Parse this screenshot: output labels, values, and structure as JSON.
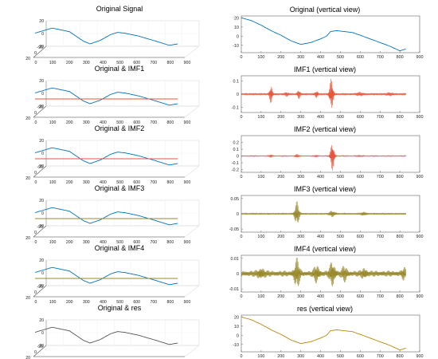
{
  "colors": {
    "signal": "#0072BD",
    "imf12": "#E8563A",
    "imf34": "#9A8A2E",
    "residue": "#B8860B",
    "original_res": "#555555"
  },
  "chart_data": [
    {
      "type": "line",
      "view": "3d",
      "title": "Original Signal",
      "xticks": [
        0,
        100,
        200,
        300,
        400,
        500,
        600,
        700,
        800,
        900
      ],
      "zticks": [
        -20,
        0,
        20
      ],
      "yticks": [
        -20,
        0,
        20
      ],
      "series": [
        {
          "color_key": "signal",
          "points": [
            [
              0,
              5
            ],
            [
              100,
              12
            ],
            [
              200,
              7
            ],
            [
              280,
              -6
            ],
            [
              320,
              -10
            ],
            [
              380,
              -5
            ],
            [
              440,
              3
            ],
            [
              480,
              6
            ],
            [
              520,
              5
            ],
            [
              600,
              1
            ],
            [
              700,
              -6
            ],
            [
              780,
              -12
            ],
            [
              830,
              -10
            ]
          ]
        }
      ]
    },
    {
      "type": "line",
      "view": "vertical",
      "title": "Original (vertical view)",
      "xticks": [
        0,
        100,
        200,
        300,
        400,
        500,
        600,
        700,
        800,
        900
      ],
      "yticks": [
        -10,
        0,
        10,
        20
      ],
      "ylim": [
        -18,
        22
      ],
      "series": [
        {
          "color_key": "signal",
          "points": [
            [
              0,
              20
            ],
            [
              50,
              17
            ],
            [
              100,
              12
            ],
            [
              150,
              6
            ],
            [
              200,
              1
            ],
            [
              250,
              -5
            ],
            [
              300,
              -9
            ],
            [
              350,
              -7
            ],
            [
              400,
              -3
            ],
            [
              430,
              0
            ],
            [
              450,
              5
            ],
            [
              480,
              6
            ],
            [
              520,
              5
            ],
            [
              560,
              4
            ],
            [
              600,
              1
            ],
            [
              650,
              -3
            ],
            [
              700,
              -7
            ],
            [
              750,
              -11
            ],
            [
              800,
              -16
            ],
            [
              830,
              -14
            ]
          ]
        }
      ]
    },
    {
      "type": "line",
      "view": "3d",
      "title": "Original & IMF1",
      "xticks": [
        0,
        100,
        200,
        300,
        400,
        500,
        600,
        700,
        800,
        900
      ],
      "zticks": [
        -20,
        0,
        20
      ],
      "yticks": [
        -20,
        0,
        20
      ],
      "series": [
        {
          "color_key": "signal",
          "points": [
            [
              0,
              5
            ],
            [
              100,
              12
            ],
            [
              200,
              7
            ],
            [
              280,
              -6
            ],
            [
              320,
              -10
            ],
            [
              380,
              -5
            ],
            [
              440,
              3
            ],
            [
              480,
              6
            ],
            [
              520,
              5
            ],
            [
              600,
              1
            ],
            [
              700,
              -6
            ],
            [
              780,
              -12
            ],
            [
              830,
              -10
            ]
          ]
        },
        {
          "color_key": "imf12",
          "flat": true,
          "level": 0
        }
      ]
    },
    {
      "type": "line",
      "view": "vertical",
      "title": "IMF1 (vertical view)",
      "xticks": [
        0,
        100,
        200,
        300,
        400,
        500,
        600,
        700,
        800,
        900
      ],
      "yticks": [
        -0.1,
        0,
        0.1
      ],
      "ylim": [
        -0.14,
        0.14
      ],
      "oscillation": {
        "color_key": "imf12",
        "base": 0.008,
        "bursts": [
          [
            150,
            0.07,
            8
          ],
          [
            230,
            0.015,
            10
          ],
          [
            290,
            0.03,
            8
          ],
          [
            380,
            0.025,
            8
          ],
          [
            455,
            0.13,
            10
          ],
          [
            600,
            0.01,
            20
          ],
          [
            750,
            0.008,
            20
          ]
        ]
      }
    },
    {
      "type": "line",
      "view": "3d",
      "title": "Original & IMF2",
      "xticks": [
        0,
        100,
        200,
        300,
        400,
        500,
        600,
        700,
        800,
        900
      ],
      "zticks": [
        -20,
        0,
        20
      ],
      "yticks": [
        -20,
        0,
        20
      ],
      "series": [
        {
          "color_key": "signal",
          "points": [
            [
              0,
              5
            ],
            [
              100,
              12
            ],
            [
              200,
              7
            ],
            [
              280,
              -6
            ],
            [
              320,
              -10
            ],
            [
              380,
              -5
            ],
            [
              440,
              3
            ],
            [
              480,
              6
            ],
            [
              520,
              5
            ],
            [
              600,
              1
            ],
            [
              700,
              -6
            ],
            [
              780,
              -12
            ],
            [
              830,
              -10
            ]
          ]
        },
        {
          "color_key": "imf12",
          "flat": true,
          "level": 0
        }
      ]
    },
    {
      "type": "line",
      "view": "vertical",
      "title": "IMF2 (vertical view)",
      "xticks": [
        0,
        100,
        200,
        300,
        400,
        500,
        600,
        700,
        800,
        900
      ],
      "yticks": [
        -0.2,
        -0.1,
        0,
        0.1,
        0.2
      ],
      "ylim": [
        -0.24,
        0.3
      ],
      "oscillation": {
        "color_key": "imf12",
        "base": 0.006,
        "bursts": [
          [
            150,
            0.02,
            10
          ],
          [
            280,
            0.025,
            10
          ],
          [
            380,
            0.015,
            10
          ],
          [
            460,
            0.25,
            10
          ],
          [
            600,
            0.008,
            20
          ]
        ]
      }
    },
    {
      "type": "line",
      "view": "3d",
      "title": "Original & IMF3",
      "xticks": [
        0,
        100,
        200,
        300,
        400,
        500,
        600,
        700,
        800,
        900
      ],
      "zticks": [
        -20,
        0,
        20
      ],
      "yticks": [
        -20,
        0,
        20
      ],
      "series": [
        {
          "color_key": "signal",
          "points": [
            [
              0,
              5
            ],
            [
              100,
              12
            ],
            [
              200,
              7
            ],
            [
              280,
              -6
            ],
            [
              320,
              -10
            ],
            [
              380,
              -5
            ],
            [
              440,
              3
            ],
            [
              480,
              6
            ],
            [
              520,
              5
            ],
            [
              600,
              1
            ],
            [
              700,
              -6
            ],
            [
              780,
              -12
            ],
            [
              830,
              -10
            ]
          ]
        },
        {
          "color_key": "imf34",
          "flat": true,
          "level": 0
        }
      ]
    },
    {
      "type": "line",
      "view": "vertical",
      "title": "IMF3 (vertical view)",
      "xticks": [
        0,
        100,
        200,
        300,
        400,
        500,
        600,
        700,
        800,
        900
      ],
      "yticks": [
        -0.05,
        0,
        0.05
      ],
      "ylim": [
        -0.06,
        0.06
      ],
      "oscillation": {
        "color_key": "imf34",
        "base": 0.003,
        "bursts": [
          [
            280,
            0.04,
            12
          ],
          [
            460,
            0.01,
            15
          ],
          [
            620,
            0.006,
            15
          ]
        ]
      }
    },
    {
      "type": "line",
      "view": "3d",
      "title": "Original & IMF4",
      "xticks": [
        0,
        100,
        200,
        300,
        400,
        500,
        600,
        700,
        800,
        900
      ],
      "zticks": [
        -20,
        0,
        20
      ],
      "yticks": [
        -20,
        0,
        20
      ],
      "series": [
        {
          "color_key": "signal",
          "points": [
            [
              0,
              5
            ],
            [
              100,
              12
            ],
            [
              200,
              7
            ],
            [
              280,
              -6
            ],
            [
              320,
              -10
            ],
            [
              380,
              -5
            ],
            [
              440,
              3
            ],
            [
              480,
              6
            ],
            [
              520,
              5
            ],
            [
              600,
              1
            ],
            [
              700,
              -6
            ],
            [
              780,
              -12
            ],
            [
              830,
              -10
            ]
          ]
        },
        {
          "color_key": "imf34",
          "flat": true,
          "level": 0
        }
      ]
    },
    {
      "type": "line",
      "view": "vertical",
      "title": "IMF4 (vertical view)",
      "xticks": [
        0,
        100,
        200,
        300,
        400,
        500,
        600,
        700,
        800,
        900
      ],
      "yticks": [
        -0.01,
        0,
        0.01
      ],
      "ylim": [
        -0.012,
        0.012
      ],
      "oscillation": {
        "color_key": "imf34",
        "base": 0.002,
        "bursts": [
          [
            100,
            0.003,
            20
          ],
          [
            280,
            0.009,
            15
          ],
          [
            380,
            0.005,
            15
          ],
          [
            460,
            0.008,
            15
          ],
          [
            520,
            0.004,
            15
          ],
          [
            620,
            0.003,
            15
          ],
          [
            820,
            0.003,
            10
          ]
        ]
      }
    },
    {
      "type": "line",
      "view": "3d",
      "title": "Original & res",
      "xticks": [
        0,
        100,
        200,
        300,
        400,
        500,
        600,
        700,
        800,
        900
      ],
      "zticks": [
        -20,
        0,
        20
      ],
      "yticks": [
        -20,
        0,
        20
      ],
      "series": [
        {
          "color_key": "original_res",
          "points": [
            [
              0,
              5
            ],
            [
              100,
              12
            ],
            [
              200,
              7
            ],
            [
              280,
              -6
            ],
            [
              320,
              -10
            ],
            [
              380,
              -5
            ],
            [
              440,
              3
            ],
            [
              480,
              6
            ],
            [
              520,
              5
            ],
            [
              600,
              1
            ],
            [
              700,
              -6
            ],
            [
              780,
              -12
            ],
            [
              830,
              -10
            ]
          ]
        }
      ]
    },
    {
      "type": "line",
      "view": "vertical",
      "title": "res (vertical view)",
      "xticks": [
        0,
        100,
        200,
        300,
        400,
        500,
        600,
        700,
        800,
        900
      ],
      "yticks": [
        -10,
        0,
        10,
        20
      ],
      "ylim": [
        -18,
        22
      ],
      "series": [
        {
          "color_key": "residue",
          "points": [
            [
              0,
              20
            ],
            [
              50,
              17
            ],
            [
              100,
              12
            ],
            [
              150,
              6
            ],
            [
              200,
              1
            ],
            [
              250,
              -5
            ],
            [
              300,
              -9
            ],
            [
              350,
              -7
            ],
            [
              400,
              -3
            ],
            [
              430,
              0
            ],
            [
              450,
              5
            ],
            [
              480,
              6
            ],
            [
              520,
              5
            ],
            [
              560,
              4
            ],
            [
              600,
              1
            ],
            [
              650,
              -3
            ],
            [
              700,
              -7
            ],
            [
              750,
              -11
            ],
            [
              800,
              -16
            ],
            [
              830,
              -14
            ]
          ]
        }
      ]
    }
  ]
}
